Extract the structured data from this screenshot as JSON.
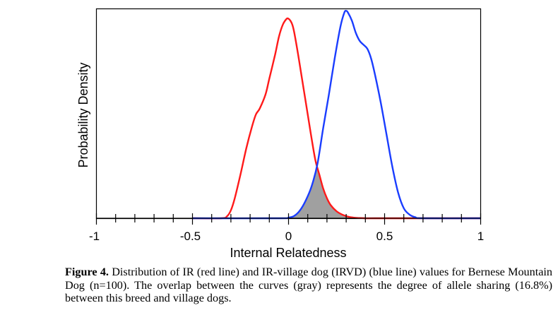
{
  "chart_data": {
    "type": "line",
    "title": "",
    "xlabel": "Internal Relatedness",
    "ylabel": "Probability Density",
    "xlim": [
      -1,
      1
    ],
    "ylim": [
      0,
      1.05
    ],
    "x_tick_labels": [
      "-1",
      "-0.5",
      "0",
      "0.5",
      "1"
    ],
    "x_ticks": [
      -1,
      -0.5,
      0,
      0.5,
      1
    ],
    "minor_tick_step": 0.1,
    "grid": false,
    "legend": "none",
    "overlap_fill_color": "#a0a0a0",
    "series": [
      {
        "color": "#ff1a1a",
        "x": [
          -0.5,
          -0.35,
          -0.32,
          -0.3,
          -0.28,
          -0.25,
          -0.22,
          -0.19,
          -0.17,
          -0.15,
          -0.12,
          -0.1,
          -0.07,
          -0.05,
          -0.03,
          -0.01,
          0.0,
          0.01,
          0.02,
          0.03,
          0.05,
          0.07,
          0.1,
          0.12,
          0.14,
          0.16,
          0.18,
          0.2,
          0.22,
          0.25,
          0.28,
          0.31,
          0.34,
          0.37,
          0.4,
          0.45,
          1.0
        ],
        "y": [
          0,
          0,
          0.01,
          0.04,
          0.1,
          0.22,
          0.35,
          0.46,
          0.52,
          0.55,
          0.62,
          0.7,
          0.82,
          0.91,
          0.97,
          1.0,
          1.0,
          0.99,
          0.97,
          0.93,
          0.82,
          0.7,
          0.52,
          0.4,
          0.29,
          0.22,
          0.15,
          0.1,
          0.065,
          0.035,
          0.018,
          0.008,
          0.003,
          0.001,
          0,
          0,
          0
        ]
      },
      {
        "color": "#1a3dff",
        "x": [
          -0.5,
          -0.05,
          0.0,
          0.03,
          0.06,
          0.09,
          0.12,
          0.15,
          0.18,
          0.21,
          0.24,
          0.27,
          0.29,
          0.3,
          0.31,
          0.33,
          0.35,
          0.37,
          0.39,
          0.41,
          0.43,
          0.45,
          0.48,
          0.51,
          0.54,
          0.57,
          0.6,
          0.63,
          0.66,
          0.7,
          1.0
        ],
        "y": [
          0,
          0,
          0.003,
          0.012,
          0.04,
          0.09,
          0.16,
          0.27,
          0.45,
          0.62,
          0.8,
          0.96,
          1.03,
          1.04,
          1.03,
          0.99,
          0.93,
          0.89,
          0.87,
          0.85,
          0.8,
          0.72,
          0.58,
          0.42,
          0.26,
          0.13,
          0.05,
          0.018,
          0.005,
          0,
          0
        ]
      }
    ]
  },
  "caption": {
    "label": "Figure 4.",
    "text": "Distribution of IR (red line) and IR-village dog (IRVD) (blue line) values for Bernese Mountain Dog (n=100). The overlap between the curves (gray) represents the degree of allele sharing (16.8%) between this breed and village dogs."
  }
}
